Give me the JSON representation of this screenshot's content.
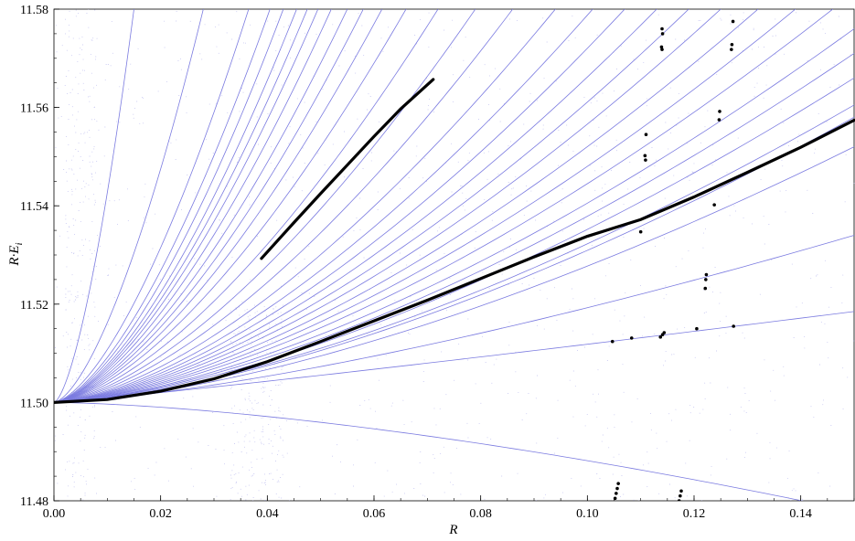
{
  "chart_data": {
    "type": "line",
    "title": "",
    "xlabel": "R",
    "ylabel": "R·E_i",
    "ylabel_main": "R·E",
    "ylabel_sub": "i",
    "xlim": [
      0.0,
      0.15
    ],
    "ylim": [
      11.48,
      11.58
    ],
    "x_ticks": [
      0.0,
      0.02,
      0.04,
      0.06,
      0.08,
      0.1,
      0.12,
      0.14
    ],
    "x_tick_labels": [
      "0.00",
      "0.02",
      "0.04",
      "0.06",
      "0.08",
      "0.10",
      "0.12",
      "0.14"
    ],
    "y_ticks": [
      11.48,
      11.5,
      11.52,
      11.54,
      11.56,
      11.58
    ],
    "y_tick_labels": [
      "11.48",
      "11.50",
      "11.52",
      "11.54",
      "11.56",
      "11.58"
    ],
    "grid": false,
    "legend": "none",
    "colors": {
      "family_lines": "#7b7be0",
      "highlight": "#000000",
      "noise_dots": "#9a9ae8"
    },
    "family_origin": [
      0.0,
      11.5
    ],
    "family_curves": [
      {
        "ymax": 11.58,
        "xend": 0.015,
        "shape": 1.55
      },
      {
        "ymax": 11.58,
        "xend": 0.028,
        "shape": 1.55
      },
      {
        "ymax": 11.58,
        "xend": 0.0365,
        "shape": 1.55
      },
      {
        "ymax": 11.58,
        "xend": 0.0405,
        "shape": 1.55
      },
      {
        "ymax": 11.58,
        "xend": 0.043,
        "shape": 1.55
      },
      {
        "ymax": 11.58,
        "xend": 0.0455,
        "shape": 1.55
      },
      {
        "ymax": 11.58,
        "xend": 0.0475,
        "shape": 1.55
      },
      {
        "ymax": 11.58,
        "xend": 0.0495,
        "shape": 1.55
      },
      {
        "ymax": 11.58,
        "xend": 0.052,
        "shape": 1.55
      },
      {
        "ymax": 11.58,
        "xend": 0.055,
        "shape": 1.55
      },
      {
        "ymax": 11.58,
        "xend": 0.058,
        "shape": 1.55
      },
      {
        "ymax": 11.58,
        "xend": 0.0615,
        "shape": 1.55
      },
      {
        "ymax": 11.58,
        "xend": 0.066,
        "shape": 1.55
      },
      {
        "ymax": 11.58,
        "xend": 0.072,
        "shape": 1.55
      },
      {
        "ymax": 11.58,
        "xend": 0.079,
        "shape": 1.55
      },
      {
        "ymax": 11.58,
        "xend": 0.086,
        "shape": 1.55
      },
      {
        "ymax": 11.58,
        "xend": 0.094,
        "shape": 1.55
      },
      {
        "ymax": 11.58,
        "xend": 0.101,
        "shape": 1.55
      },
      {
        "ymax": 11.58,
        "xend": 0.107,
        "shape": 1.55
      },
      {
        "ymax": 11.58,
        "xend": 0.113,
        "shape": 1.55
      },
      {
        "ymax": 11.58,
        "xend": 0.119,
        "shape": 1.55
      },
      {
        "ymax": 11.58,
        "xend": 0.125,
        "shape": 1.55
      },
      {
        "ymax": 11.58,
        "xend": 0.132,
        "shape": 1.55
      },
      {
        "ymax": 11.58,
        "xend": 0.139,
        "shape": 1.55
      },
      {
        "ymax": 11.58,
        "xend": 0.146,
        "shape": 1.55
      },
      {
        "ymax": 11.576,
        "xend": 0.15,
        "shape": 1.55
      },
      {
        "ymax": 11.571,
        "xend": 0.15,
        "shape": 1.55
      },
      {
        "ymax": 11.566,
        "xend": 0.15,
        "shape": 1.55
      },
      {
        "ymax": 11.5605,
        "xend": 0.15,
        "shape": 1.55
      },
      {
        "ymax": 11.558,
        "xend": 0.15,
        "shape": 1.55
      },
      {
        "ymax": 11.552,
        "xend": 0.15,
        "shape": 1.55
      },
      {
        "ymax": 11.534,
        "xend": 0.15,
        "shape": 1.4
      },
      {
        "ymax": 11.5185,
        "xend": 0.15,
        "shape": 1.1
      },
      {
        "ymax": 11.4778,
        "xend": 0.15,
        "shape": 1.55
      }
    ],
    "highlight_series": [
      {
        "name": "",
        "x": [
          0.0,
          0.01,
          0.02,
          0.03,
          0.04,
          0.05,
          0.06,
          0.07,
          0.08,
          0.09,
          0.1,
          0.11,
          0.12,
          0.13,
          0.14,
          0.15
        ],
        "y": [
          11.5,
          11.5006,
          11.5023,
          11.5048,
          11.5083,
          11.5124,
          11.5166,
          11.5208,
          11.5252,
          11.5296,
          11.5338,
          11.5372,
          11.5418,
          11.5468,
          11.5519,
          11.5574
        ]
      },
      {
        "name": "",
        "x": [
          0.0389,
          0.045,
          0.05,
          0.055,
          0.06,
          0.065,
          0.0711
        ],
        "y": [
          11.5293,
          11.5366,
          11.5425,
          11.5483,
          11.5541,
          11.5597,
          11.5657
        ]
      }
    ],
    "highlight_points": [
      {
        "x": 0.1052,
        "y": 11.4805
      },
      {
        "x": 0.1054,
        "y": 11.4815
      },
      {
        "x": 0.1056,
        "y": 11.4825
      },
      {
        "x": 0.1058,
        "y": 11.4835
      },
      {
        "x": 0.1047,
        "y": 11.5124
      },
      {
        "x": 0.1083,
        "y": 11.5131
      },
      {
        "x": 0.11,
        "y": 11.5347
      },
      {
        "x": 0.111,
        "y": 11.5545
      },
      {
        "x": 0.1108,
        "y": 11.5502
      },
      {
        "x": 0.1109,
        "y": 11.5493
      },
      {
        "x": 0.1137,
        "y": 11.5133
      },
      {
        "x": 0.1141,
        "y": 11.5138
      },
      {
        "x": 0.1144,
        "y": 11.5142
      },
      {
        "x": 0.114,
        "y": 11.576
      },
      {
        "x": 0.1141,
        "y": 11.575
      },
      {
        "x": 0.1139,
        "y": 11.5723
      },
      {
        "x": 0.114,
        "y": 11.5718
      },
      {
        "x": 0.1172,
        "y": 11.48
      },
      {
        "x": 0.1174,
        "y": 11.481
      },
      {
        "x": 0.1176,
        "y": 11.482
      },
      {
        "x": 0.1205,
        "y": 11.515
      },
      {
        "x": 0.1221,
        "y": 11.5232
      },
      {
        "x": 0.1222,
        "y": 11.525
      },
      {
        "x": 0.1223,
        "y": 11.526
      },
      {
        "x": 0.1238,
        "y": 11.5402
      },
      {
        "x": 0.1248,
        "y": 11.5592
      },
      {
        "x": 0.1247,
        "y": 11.5575
      },
      {
        "x": 0.1274,
        "y": 11.5155
      },
      {
        "x": 0.1271,
        "y": 11.5728
      },
      {
        "x": 0.127,
        "y": 11.5718
      },
      {
        "x": 0.1273,
        "y": 11.5775
      }
    ]
  }
}
